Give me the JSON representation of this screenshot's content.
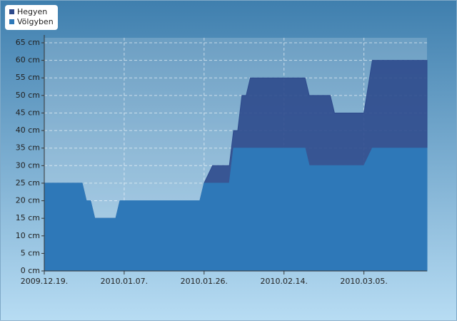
{
  "chart_data": {
    "type": "area",
    "x": [
      "2009-12-19",
      "2009-12-28",
      "2009-12-29",
      "2009-12-30",
      "2009-12-31",
      "2010-01-05",
      "2010-01-06",
      "2010-01-25",
      "2010-01-26",
      "2010-01-28",
      "2010-02-01",
      "2010-02-02",
      "2010-02-03",
      "2010-02-04",
      "2010-02-05",
      "2010-02-06",
      "2010-02-19",
      "2010-02-20",
      "2010-02-25",
      "2010-02-26",
      "2010-03-05",
      "2010-03-07",
      "2010-03-20"
    ],
    "series": [
      {
        "name": "Hegyen",
        "color": "#2d4a8c",
        "values": [
          25,
          25,
          20,
          20,
          15,
          15,
          20,
          20,
          25,
          30,
          30,
          40,
          40,
          50,
          50,
          55,
          55,
          50,
          50,
          45,
          45,
          60,
          60
        ]
      },
      {
        "name": "Völgyben",
        "color": "#2e78b8",
        "values": [
          25,
          25,
          20,
          20,
          15,
          15,
          20,
          20,
          25,
          25,
          25,
          35,
          35,
          35,
          35,
          35,
          35,
          30,
          30,
          30,
          30,
          35,
          35
        ]
      }
    ],
    "xlim": [
      "2009-12-19",
      "2010-03-20"
    ],
    "xticks": [
      {
        "value": "2009-12-19",
        "label": "2009.12.19."
      },
      {
        "value": "2010-01-07",
        "label": "2010.01.07."
      },
      {
        "value": "2010-01-26",
        "label": "2010.01.26."
      },
      {
        "value": "2010-02-14",
        "label": "2010.02.14."
      },
      {
        "value": "2010-03-05",
        "label": "2010.03.05."
      }
    ],
    "ylim": [
      0,
      65
    ],
    "yticks": [
      {
        "value": 0,
        "label": "0 cm"
      },
      {
        "value": 5,
        "label": "5 cm"
      },
      {
        "value": 10,
        "label": "10 cm"
      },
      {
        "value": 15,
        "label": "15 cm"
      },
      {
        "value": 20,
        "label": "20 cm"
      },
      {
        "value": 25,
        "label": "25 cm"
      },
      {
        "value": 30,
        "label": "30 cm"
      },
      {
        "value": 35,
        "label": "35 cm"
      },
      {
        "value": 40,
        "label": "40 cm"
      },
      {
        "value": 45,
        "label": "45 cm"
      },
      {
        "value": 50,
        "label": "50 cm"
      },
      {
        "value": 55,
        "label": "55 cm"
      },
      {
        "value": 60,
        "label": "60 cm"
      },
      {
        "value": 65,
        "label": "65 cm"
      }
    ],
    "grid": true,
    "legend": "top-left"
  }
}
